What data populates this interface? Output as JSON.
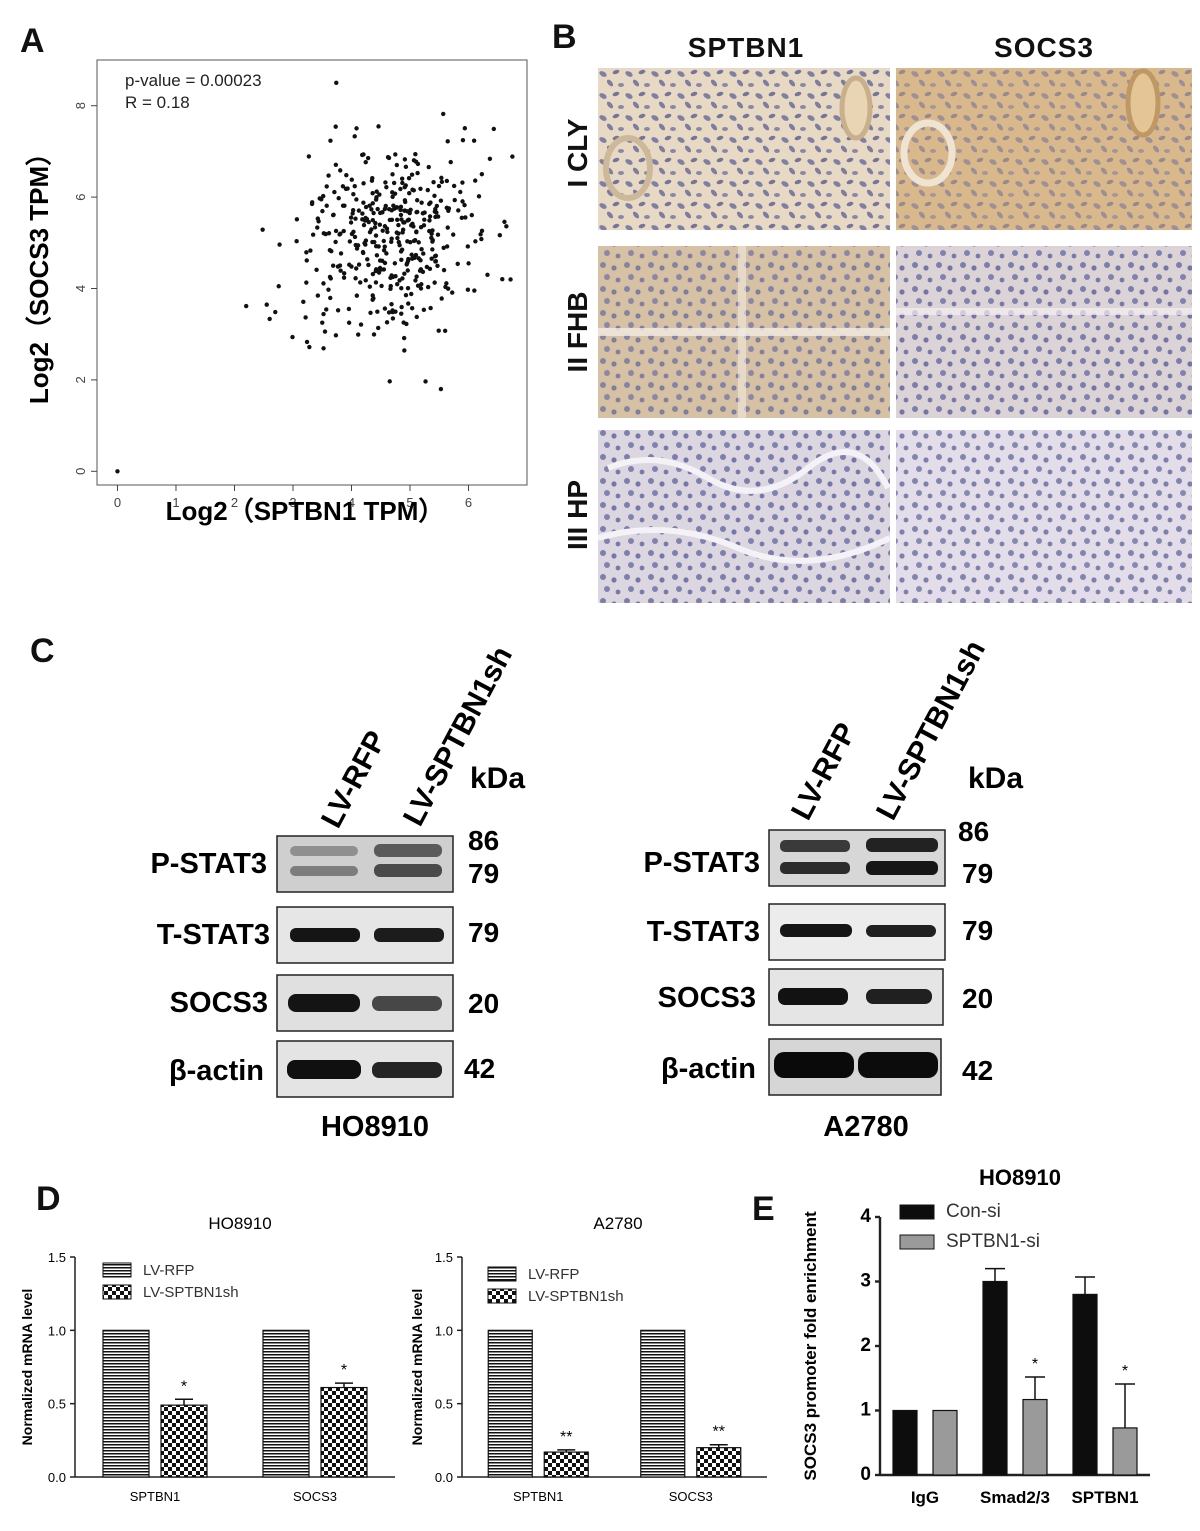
{
  "panels": {
    "A": "A",
    "B": "B",
    "C": "C",
    "D": "D",
    "E": "E"
  },
  "panel_a": {
    "annotation_p": "p-value = 0.00023",
    "annotation_r": "R = 0.18"
  },
  "panel_b": {
    "col_headers": [
      "SPTBN1",
      "SOCS3"
    ],
    "row_labels": [
      "I CLY",
      "II FHB",
      "III HP"
    ]
  },
  "panel_c": {
    "blots": [
      {
        "cell_line": "HO8910",
        "lanes": [
          "LV-RFP",
          "LV-SPTBN1sh"
        ],
        "unit": "kDa",
        "rows": [
          {
            "label": "P-STAT3",
            "sizes": [
              "86",
              "79"
            ]
          },
          {
            "label": "T-STAT3",
            "sizes": [
              "79"
            ]
          },
          {
            "label": "SOCS3",
            "sizes": [
              "20"
            ]
          },
          {
            "label": "β-actin",
            "sizes": [
              "42"
            ]
          }
        ]
      },
      {
        "cell_line": "A2780",
        "lanes": [
          "LV-RFP",
          "LV-SPTBN1sh"
        ],
        "unit": "kDa",
        "rows": [
          {
            "label": "P-STAT3",
            "sizes": [
              "86",
              "79"
            ]
          },
          {
            "label": "T-STAT3",
            "sizes": [
              "79"
            ]
          },
          {
            "label": "SOCS3",
            "sizes": [
              "20"
            ]
          },
          {
            "label": "β-actin",
            "sizes": [
              "42"
            ]
          }
        ]
      }
    ]
  },
  "chart_data": [
    {
      "id": "A",
      "type": "scatter",
      "title": "",
      "xlabel": "Log2（SPTBN1 TPM）",
      "ylabel": "Log2（SOCS3 TPM）",
      "xlim": [
        -0.35,
        7.0
      ],
      "ylim": [
        -0.3,
        9.0
      ],
      "xticks": [
        0,
        1,
        2,
        3,
        4,
        5,
        6
      ],
      "yticks": [
        0,
        2,
        4,
        6,
        8
      ],
      "n_points": 420,
      "x_mean": 4.6,
      "x_sd": 0.78,
      "y_mean": 5.1,
      "y_sd": 1.1,
      "outlier": [
        0,
        0
      ]
    },
    {
      "id": "D1",
      "type": "bar",
      "title": "HO8910",
      "ylabel": "Normalized mRNA level",
      "categories": [
        "SPTBN1",
        "SOCS3"
      ],
      "series": [
        {
          "name": "LV-RFP",
          "values": [
            1.0,
            1.0
          ],
          "errors": [
            0,
            0
          ]
        },
        {
          "name": "LV-SPTBN1sh",
          "values": [
            0.49,
            0.61
          ],
          "errors": [
            0.04,
            0.03
          ]
        }
      ],
      "significance": [
        "*",
        "*"
      ],
      "ylim": [
        0,
        1.5
      ],
      "yticks": [
        "0.0",
        "0.5",
        "1.0",
        "1.5"
      ]
    },
    {
      "id": "D2",
      "type": "bar",
      "title": "A2780",
      "ylabel": "Normalized mRNA level",
      "categories": [
        "SPTBN1",
        "SOCS3"
      ],
      "series": [
        {
          "name": "LV-RFP",
          "values": [
            1.0,
            1.0
          ],
          "errors": [
            0,
            0
          ]
        },
        {
          "name": "LV-SPTBN1sh",
          "values": [
            0.17,
            0.2
          ],
          "errors": [
            0.015,
            0.02
          ]
        }
      ],
      "significance": [
        "**",
        "**"
      ],
      "ylim": [
        0,
        1.5
      ],
      "yticks": [
        "0.0",
        "0.5",
        "1.0",
        "1.5"
      ]
    },
    {
      "id": "E",
      "type": "bar",
      "title": "HO8910",
      "ylabel": "SOCS3 promoter fold enrichment",
      "categories": [
        "IgG",
        "Smad2/3",
        "SPTBN1"
      ],
      "series": [
        {
          "name": "Con-si",
          "values": [
            1.0,
            3.0,
            2.8
          ],
          "errors": [
            0,
            0.2,
            0.27
          ]
        },
        {
          "name": "SPTBN1-si",
          "values": [
            1.0,
            1.17,
            0.73
          ],
          "errors": [
            0,
            0.35,
            0.68
          ]
        }
      ],
      "significance": [
        "",
        "*",
        "*"
      ],
      "ylim": [
        0,
        4
      ],
      "yticks": [
        "0",
        "1",
        "2",
        "3",
        "4"
      ],
      "colors": [
        "#0d0d0d",
        "#9a9a9a"
      ]
    }
  ]
}
